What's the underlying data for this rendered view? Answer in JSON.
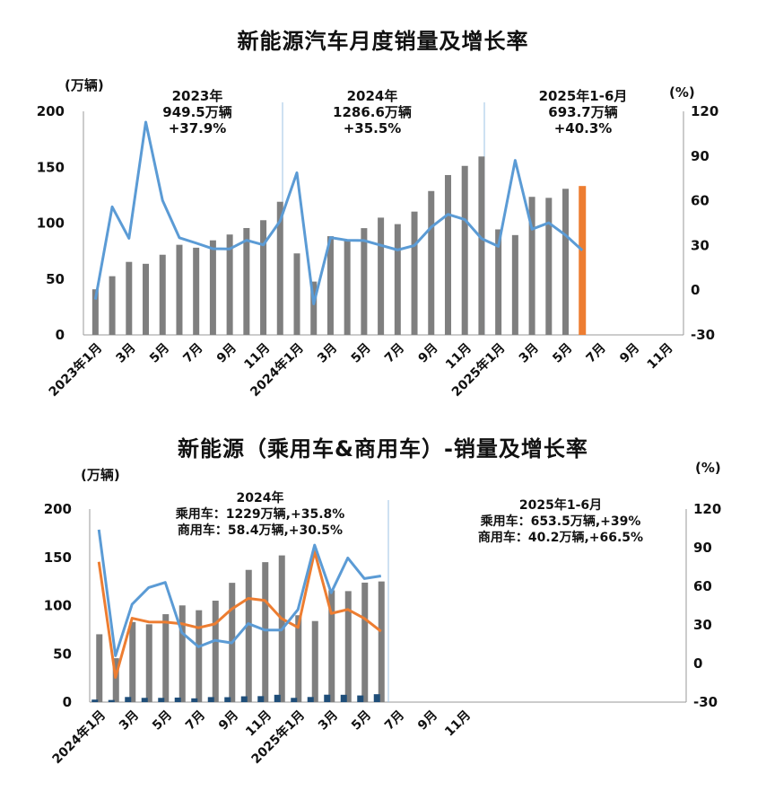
{
  "chart_data": [
    {
      "type": "bar+line",
      "title": "新能源汽车月度销量及增长率",
      "left_unit": "(万辆)",
      "right_unit": "(%)",
      "y_left": {
        "min": 0,
        "max": 200,
        "ticks": [
          "0",
          "50",
          "100",
          "150",
          "200"
        ]
      },
      "y_right": {
        "min": -30,
        "max": 120,
        "ticks": [
          "-30",
          "0",
          "30",
          "60",
          "90",
          "120"
        ]
      },
      "x_tick_labels": [
        "2023年1月",
        "3月",
        "5月",
        "7月",
        "9月",
        "11月",
        "2024年1月",
        "3月",
        "5月",
        "7月",
        "9月",
        "11月",
        "2025年1月",
        "3月",
        "5月",
        "7月",
        "9月",
        "11月"
      ],
      "annotations": [
        {
          "lines": [
            "2023年",
            "949.5万辆",
            "+37.9%"
          ]
        },
        {
          "lines": [
            "2024年",
            "1286.6万辆",
            "+35.5%"
          ]
        },
        {
          "lines": [
            "2025年1-6月",
            "693.7万辆",
            "+40.3%"
          ]
        }
      ],
      "series": [
        {
          "kind": "bar",
          "unit": "万辆",
          "color": "#7f7f7f",
          "highlight_last_color": "#ed7d31",
          "values": [
            40.8,
            52.5,
            65.3,
            63.6,
            71.7,
            80.6,
            78.0,
            84.6,
            89.8,
            95.6,
            102.6,
            119.1,
            72.9,
            47.7,
            88.3,
            85.0,
            95.5,
            104.9,
            99.1,
            110.3,
            128.7,
            143.0,
            151.2,
            159.6,
            94.4,
            89.3,
            123.5,
            122.6,
            130.7,
            133.2
          ]
        },
        {
          "kind": "line",
          "unit": "%",
          "color": "#5b9bd5",
          "values": [
            -6.3,
            55.9,
            34.8,
            112.8,
            60.2,
            35.2,
            31.6,
            27.8,
            27.7,
            33.5,
            30.4,
            46.4,
            78.8,
            -9.2,
            35.3,
            33.5,
            33.3,
            30.1,
            27.0,
            30.0,
            42.3,
            50.9,
            47.4,
            34.6,
            29.4,
            87.1,
            40.9,
            45.2,
            36.9,
            26.7
          ]
        }
      ]
    },
    {
      "type": "bar+line",
      "title": "新能源（乘用车&商用车）-销量及增长率",
      "left_unit": "(万辆)",
      "right_unit": "(%)",
      "y_left": {
        "min": 0,
        "max": 200,
        "ticks": [
          "0",
          "50",
          "100",
          "150",
          "200"
        ]
      },
      "y_right": {
        "min": -30,
        "max": 120,
        "ticks": [
          "-30",
          "0",
          "30",
          "60",
          "90",
          "120"
        ]
      },
      "x_tick_labels": [
        "2024年1月",
        "3月",
        "5月",
        "7月",
        "9月",
        "11月",
        "2025年1月",
        "3月",
        "5月",
        "7月",
        "9月",
        "11月"
      ],
      "annotations": [
        {
          "lines": [
            "2024年",
            "乘用车：1229万辆,+35.8%",
            "商用车：58.4万辆,+30.5%"
          ]
        },
        {
          "lines": [
            "2025年1-6月",
            "乘用车：653.5万辆,+39%",
            "商用车：40.2万辆,+66.5%"
          ]
        }
      ],
      "series": [
        {
          "kind": "bar",
          "name": "乘用车",
          "unit": "万辆",
          "color": "#7f7f7f",
          "values": [
            70.3,
            45.5,
            83.0,
            80.6,
            91.1,
            100.2,
            95.2,
            105.1,
            123.6,
            137.0,
            145.0,
            152.0,
            90.0,
            84.0,
            115.8,
            115.0,
            123.8,
            125.0
          ]
        },
        {
          "kind": "bar",
          "name": "商用车",
          "unit": "万辆",
          "color": "#1f4e79",
          "values": [
            2.6,
            2.2,
            5.3,
            4.4,
            4.4,
            4.7,
            3.9,
            5.2,
            5.1,
            6.0,
            6.2,
            7.6,
            4.4,
            5.3,
            7.7,
            7.6,
            6.9,
            8.2
          ]
        },
        {
          "kind": "line",
          "name": "乘用车增长率",
          "unit": "%",
          "color": "#ed7d31",
          "values": [
            79.0,
            -10.8,
            35.2,
            32.3,
            32.2,
            30.9,
            27.8,
            30.8,
            42.3,
            50.6,
            49.0,
            35.0,
            28.0,
            87.0,
            38.9,
            42.0,
            35.0,
            25.0
          ]
        },
        {
          "kind": "line",
          "name": "商用车增长率",
          "unit": "%",
          "color": "#5b9bd5",
          "values": [
            104.0,
            6.0,
            46.0,
            59.0,
            63.0,
            24.0,
            13.0,
            18.0,
            16.0,
            31.0,
            26.0,
            26.0,
            42.0,
            92.0,
            55.0,
            82.0,
            66.0,
            68.0
          ]
        }
      ]
    }
  ]
}
